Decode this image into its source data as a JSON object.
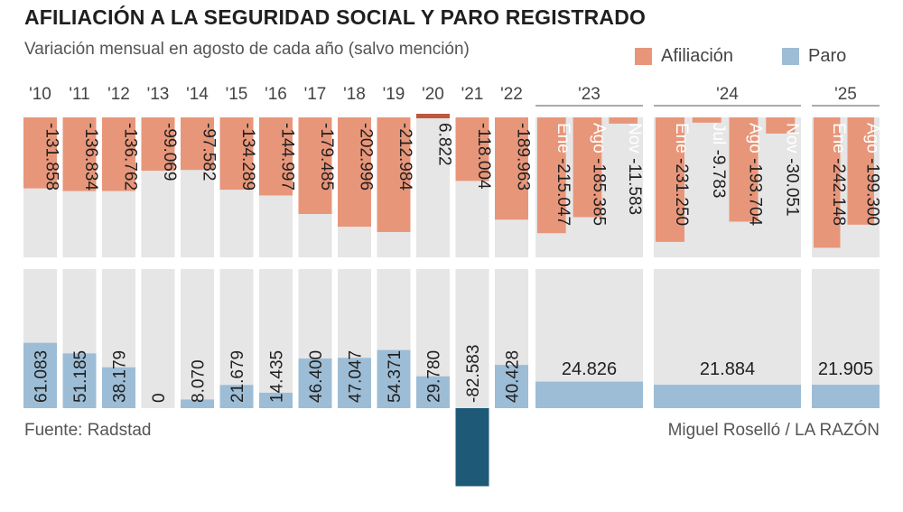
{
  "chart_data": {
    "type": "bar",
    "title": "AFILIACIÓN A LA SEGURIDAD SOCIAL Y PARO REGISTRADO",
    "subtitle": "Variación mensual en agosto de cada año (salvo mención)",
    "legend": [
      {
        "name": "Afiliación",
        "color": "#e8967a"
      },
      {
        "name": "Paro",
        "color": "#9dbdd6"
      }
    ],
    "afiliacion": [
      {
        "year": "'10",
        "label": "-131.858",
        "value": -131858
      },
      {
        "year": "'11",
        "label": "-136.834",
        "value": -136834
      },
      {
        "year": "'12",
        "label": "-136.762",
        "value": -136762
      },
      {
        "year": "'13",
        "label": "-99.069",
        "value": -99069
      },
      {
        "year": "'14",
        "label": "-97.582",
        "value": -97582
      },
      {
        "year": "'15",
        "label": "-134.289",
        "value": -134289
      },
      {
        "year": "'16",
        "label": "-144.997",
        "value": -144997
      },
      {
        "year": "'17",
        "label": "-179.485",
        "value": -179485
      },
      {
        "year": "'18",
        "label": "-202.996",
        "value": -202996
      },
      {
        "year": "'19",
        "label": "-212.984",
        "value": -212984
      },
      {
        "year": "'20",
        "label": "6.822",
        "value": 6822
      },
      {
        "year": "'21",
        "label": "-118.004",
        "value": -118004
      },
      {
        "year": "'22",
        "label": "-189.963",
        "value": -189963
      },
      {
        "year": "'23",
        "month": "Ene",
        "label": "-215.047",
        "value": -215047
      },
      {
        "year": "'23",
        "month": "Ago",
        "label": "-185.385",
        "value": -185385
      },
      {
        "year": "'23",
        "month": "Nov",
        "label": "-11.583",
        "value": -11583
      },
      {
        "year": "'24",
        "month": "Ene",
        "label": "-231.250",
        "value": -231250
      },
      {
        "year": "'24",
        "month": "Jul",
        "label": "-9.783",
        "value": -9783
      },
      {
        "year": "'24",
        "month": "Ago",
        "label": "-193.704",
        "value": -193704
      },
      {
        "year": "'24",
        "month": "Nov",
        "label": "-30.051",
        "value": -30051
      },
      {
        "year": "'25",
        "month": "Ene",
        "label": "-242.148",
        "value": -242148
      },
      {
        "year": "'25",
        "month": "Ago",
        "label": "-199.300",
        "value": -199300
      }
    ],
    "paro": [
      {
        "year": "'10",
        "label": "61.083",
        "value": 61083
      },
      {
        "year": "'11",
        "label": "51.185",
        "value": 51185
      },
      {
        "year": "'12",
        "label": "38.179",
        "value": 38179
      },
      {
        "year": "'13",
        "label": "0",
        "value": 0
      },
      {
        "year": "'14",
        "label": "8.070",
        "value": 8070
      },
      {
        "year": "'15",
        "label": "21.679",
        "value": 21679
      },
      {
        "year": "'16",
        "label": "14.435",
        "value": 14435
      },
      {
        "year": "'17",
        "label": "46.400",
        "value": 46400
      },
      {
        "year": "'18",
        "label": "47.047",
        "value": 47047
      },
      {
        "year": "'19",
        "label": "54.371",
        "value": 54371
      },
      {
        "year": "'20",
        "label": "29.780",
        "value": 29780
      },
      {
        "year": "'21",
        "label": "-82.583",
        "value": -82583
      },
      {
        "year": "'22",
        "label": "40.428",
        "value": 40428
      },
      {
        "year": "'23",
        "label": "24.826",
        "value": 24826
      },
      {
        "year": "'24",
        "label": "21.884",
        "value": 21884
      },
      {
        "year": "'25",
        "label": "21.905",
        "value": 21905
      }
    ],
    "afiliacion_range": [
      -260000,
      0
    ],
    "paro_range": [
      -120000,
      130000
    ]
  },
  "source": "Fuente: Radstad",
  "credit": "Miguel Roselló / LA RAZÓN",
  "colors": {
    "afiliacion": "#e8967a",
    "afiliacion_positive": "#c0563a",
    "paro": "#9dbdd6",
    "paro_negative": "#1e5a78",
    "background_bar": "#e6e6e6"
  }
}
